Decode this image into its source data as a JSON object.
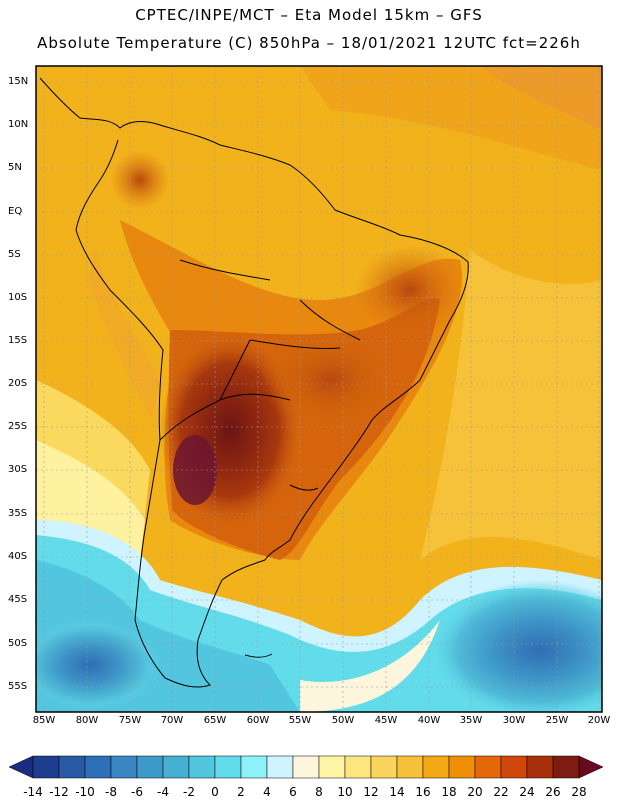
{
  "title": {
    "line1": "CPTEC/INPE/MCT –  Eta Model 15km – GFS",
    "line2": "Absolute Temperature (C) 850hPa – 18/01/2021 12UTC fct=226h"
  },
  "map": {
    "region": "South America",
    "lat_labels": [
      "15N",
      "10N",
      "5N",
      "EQ",
      "5S",
      "10S",
      "15S",
      "20S",
      "25S",
      "30S",
      "35S",
      "40S",
      "45S",
      "50S",
      "55S"
    ],
    "lon_labels": [
      "85W",
      "80W",
      "75W",
      "70W",
      "65W",
      "60W",
      "55W",
      "50W",
      "45W",
      "40W",
      "35W",
      "30W",
      "25W",
      "20W"
    ]
  },
  "colorbar": {
    "labels": [
      "-14",
      "-12",
      "-10",
      "-8",
      "-6",
      "-4",
      "-2",
      "0",
      "2",
      "4",
      "6",
      "8",
      "10",
      "12",
      "14",
      "16",
      "18",
      "20",
      "22",
      "24",
      "26",
      "28"
    ],
    "colors": [
      "#1d3d8e",
      "#2a5aa3",
      "#2e70b6",
      "#3b86c2",
      "#3e9ac8",
      "#45b0d2",
      "#52c6de",
      "#62dcea",
      "#8ef0f8",
      "#cff3ff",
      "#fdf6dc",
      "#fef5a4",
      "#fde680",
      "#fbd45e",
      "#f7c03a",
      "#f3a914",
      "#ef8f08",
      "#e56808",
      "#cf470a",
      "#a9300d",
      "#7f1c12"
    ],
    "under_color": "#1a2d80",
    "over_color": "#6b0a1e"
  }
}
